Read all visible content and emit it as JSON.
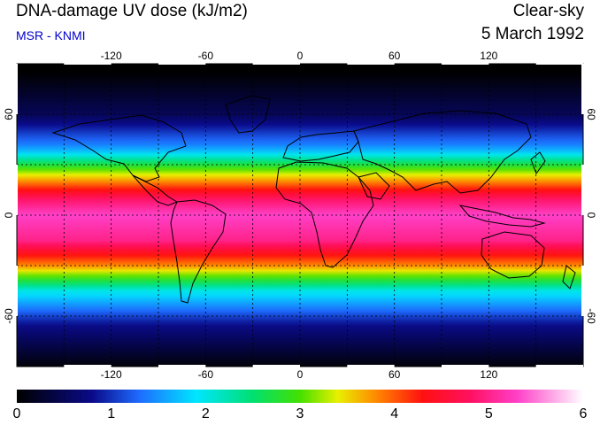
{
  "header": {
    "title": "DNA-damage UV dose (kJ/m2)",
    "source": "MSR - KNMI",
    "condition": "Clear-sky",
    "date": "5 March 1992"
  },
  "colors": {
    "source_text": "#0000cc"
  },
  "map": {
    "lon_range": [
      -180,
      180
    ],
    "lat_range": [
      -90,
      90
    ],
    "lon_ticks": [
      {
        "value": -120,
        "label": "-120"
      },
      {
        "value": -60,
        "label": "-60"
      },
      {
        "value": 0,
        "label": "0"
      },
      {
        "value": 60,
        "label": "60"
      },
      {
        "value": 120,
        "label": "120"
      }
    ],
    "lat_ticks": [
      {
        "value": 60,
        "label": "60"
      },
      {
        "value": 0,
        "label": "0"
      },
      {
        "value": -60,
        "label": "-60"
      }
    ],
    "grid_dashed": true,
    "gridline_lons": [
      -150,
      -120,
      -90,
      -60,
      -30,
      0,
      30,
      60,
      90,
      120,
      150
    ],
    "gridline_lats": [
      -60,
      -30,
      0,
      30,
      60
    ]
  },
  "colorbar": {
    "min": 0,
    "max": 6,
    "labels": [
      "0",
      "1",
      "2",
      "3",
      "4",
      "5",
      "6"
    ],
    "stops": [
      {
        "value": 0.0,
        "color": "#000000"
      },
      {
        "value": 0.8,
        "color": "#0a0a8a"
      },
      {
        "value": 1.3,
        "color": "#1e6cff"
      },
      {
        "value": 1.9,
        "color": "#00e6ff"
      },
      {
        "value": 2.5,
        "color": "#00e070"
      },
      {
        "value": 3.0,
        "color": "#44e000"
      },
      {
        "value": 3.4,
        "color": "#e8f000"
      },
      {
        "value": 3.8,
        "color": "#ff8a00"
      },
      {
        "value": 4.3,
        "color": "#ff1010"
      },
      {
        "value": 4.8,
        "color": "#ff1060"
      },
      {
        "value": 5.3,
        "color": "#ff40c8"
      },
      {
        "value": 6.0,
        "color": "#ffffff"
      }
    ]
  }
}
